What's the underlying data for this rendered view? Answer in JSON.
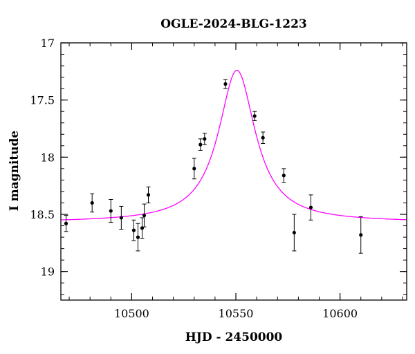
{
  "chart_data": {
    "type": "scatter",
    "title": "OGLE-2024-BLG-1223",
    "xlabel": "HJD - 2450000",
    "ylabel": "I magnitude",
    "xlim": [
      10466,
      10632
    ],
    "ylim": [
      17.0,
      19.25
    ],
    "y_inverted": true,
    "x_ticks": [
      10500,
      10550,
      10600
    ],
    "y_ticks": [
      "17",
      "17.5",
      "18",
      "18.5",
      "19"
    ],
    "x_minor_step": 10,
    "y_minor_step": 0.1,
    "grid": false,
    "colors": {
      "points": "#000000",
      "model": "#ff00ff"
    },
    "model": {
      "t0": 10550.5,
      "peak_mag": 17.24,
      "base_mag": 18.57,
      "width": 10.8
    },
    "series": [
      {
        "x": [
          10468.5,
          10481,
          10490,
          10495,
          10501,
          10503,
          10505,
          10506,
          10508,
          10530,
          10533,
          10535,
          10545,
          10559,
          10563,
          10573,
          10578,
          10586,
          10610
        ],
        "y": [
          18.58,
          18.4,
          18.47,
          18.53,
          18.64,
          18.7,
          18.62,
          18.51,
          18.33,
          18.1,
          17.89,
          17.84,
          17.36,
          17.64,
          17.83,
          18.16,
          18.66,
          18.44,
          18.68
        ],
        "err": [
          0.07,
          0.08,
          0.1,
          0.1,
          0.09,
          0.12,
          0.09,
          0.1,
          0.07,
          0.09,
          0.05,
          0.05,
          0.04,
          0.04,
          0.05,
          0.06,
          0.16,
          0.11,
          0.16
        ]
      }
    ]
  }
}
